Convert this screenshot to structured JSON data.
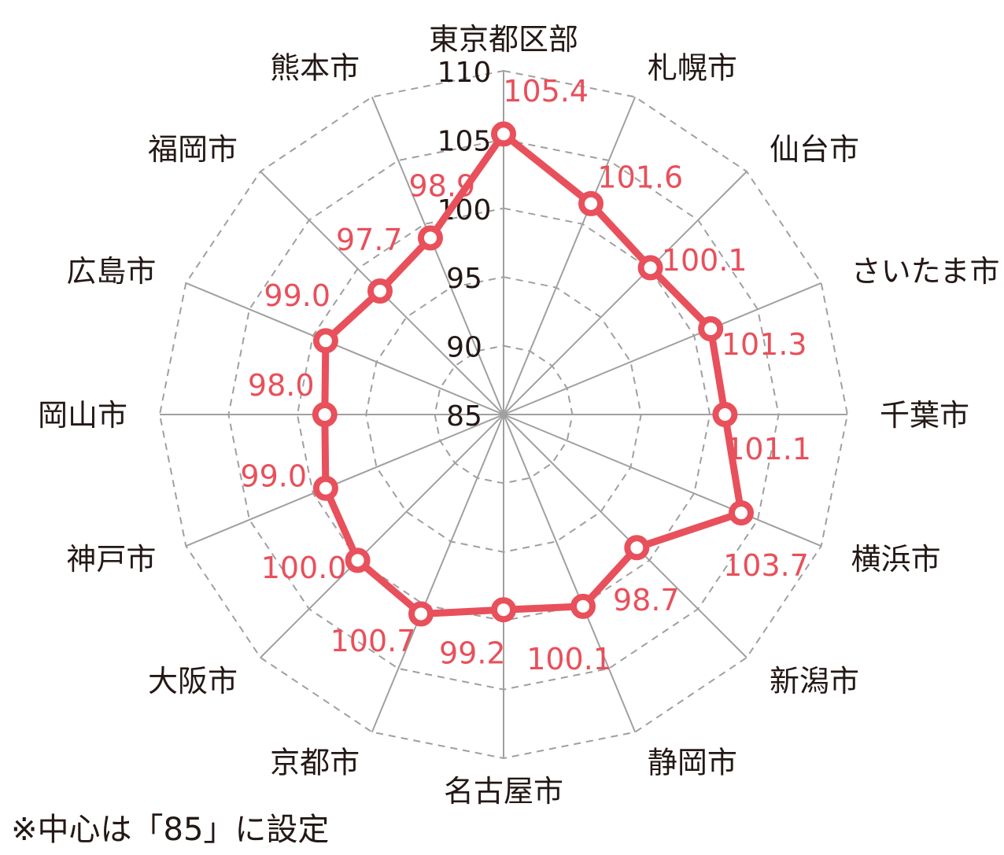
{
  "chart_data": {
    "type": "radar",
    "categories": [
      "東京都区部",
      "札幌市",
      "仙台市",
      "さいたま市",
      "千葉市",
      "横浜市",
      "新潟市",
      "静岡市",
      "名古屋市",
      "京都市",
      "大阪市",
      "神戸市",
      "岡山市",
      "広島市",
      "福岡市",
      "熊本市"
    ],
    "series": [
      {
        "values": [
          105.4,
          101.6,
          100.1,
          101.3,
          101.1,
          103.7,
          98.7,
          100.1,
          99.2,
          100.7,
          100.0,
          99.0,
          98.0,
          99.0,
          97.7,
          98.9
        ],
        "value_labels": [
          "105.4",
          "101.6",
          "100.1",
          "101.3",
          "101.1",
          "103.7",
          "98.7",
          "100.1",
          "99.2",
          "100.7",
          "100.0",
          "99.0",
          "98.0",
          "99.0",
          "97.7",
          "98.9"
        ]
      }
    ],
    "ticks": [
      85,
      90,
      95,
      100,
      105,
      110
    ],
    "tick_labels": [
      "85",
      "90",
      "95",
      "100",
      "105",
      "110"
    ],
    "range": [
      85,
      110
    ],
    "grid": "dashed",
    "colors": {
      "series": "#e8505b",
      "axis": "#a0a0a0",
      "grid": "#a0a0a0",
      "text": "#231815"
    }
  },
  "footnote": "※中心は「85」に設定"
}
